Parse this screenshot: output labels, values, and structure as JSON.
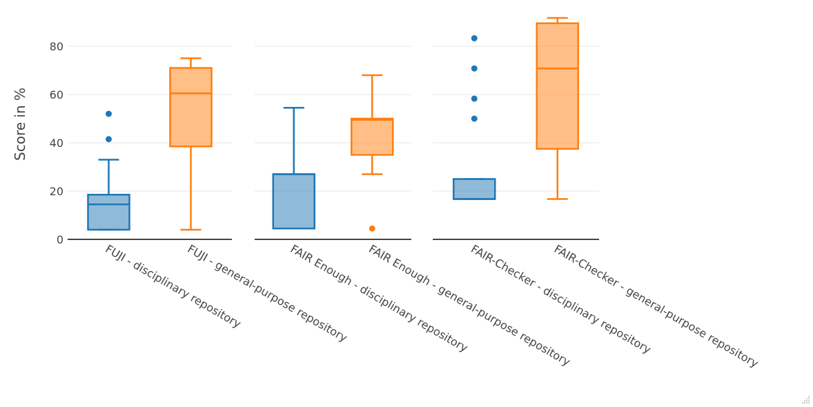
{
  "chart_data": {
    "type": "box",
    "yaxis_title": "Score in %",
    "y_range": [
      0,
      90
    ],
    "y_ticks": [
      0,
      20,
      40,
      60,
      80
    ],
    "y_tick_labels": [
      "0",
      "20",
      "40",
      "60",
      "80"
    ],
    "grid": true,
    "colors": {
      "disciplinary": "#1f77b4",
      "general": "#ff7f0e"
    },
    "panels": [
      {
        "boxes": [
          {
            "name": "FUJI - disciplinary repository",
            "group": "disciplinary",
            "min": 4,
            "q1": 4,
            "median": 14.5,
            "q3": 18.5,
            "max": 33,
            "outliers": [
              41.5,
              52
            ]
          },
          {
            "name": "FUJI - general-purpose repository",
            "group": "general",
            "min": 4,
            "q1": 38.5,
            "median": 60.5,
            "q3": 71,
            "max": 75,
            "outliers": []
          }
        ]
      },
      {
        "boxes": [
          {
            "name": "FAIR Enough - disciplinary repository",
            "group": "disciplinary",
            "min": 4.5,
            "q1": 4.5,
            "median": 27,
            "q3": 27,
            "max": 54.5,
            "outliers": []
          },
          {
            "name": "FAIR Enough - general-purpose repository",
            "group": "general",
            "min": 27,
            "q1": 35,
            "median": 49.5,
            "q3": 50,
            "max": 68,
            "outliers": [
              4.5
            ]
          }
        ]
      },
      {
        "boxes": [
          {
            "name": "FAIR-Checker - disciplinary repository",
            "group": "disciplinary",
            "min": 16.7,
            "q1": 16.7,
            "median": 16.7,
            "q3": 25,
            "max": 25,
            "outliers": [
              50,
              58.3,
              70.8,
              83.3
            ]
          },
          {
            "name": "FAIR-Checker - general-purpose repository",
            "group": "general",
            "min": 16.7,
            "q1": 37.5,
            "median": 70.8,
            "q3": 89.5,
            "max": 91.7,
            "outliers": []
          }
        ]
      }
    ]
  }
}
